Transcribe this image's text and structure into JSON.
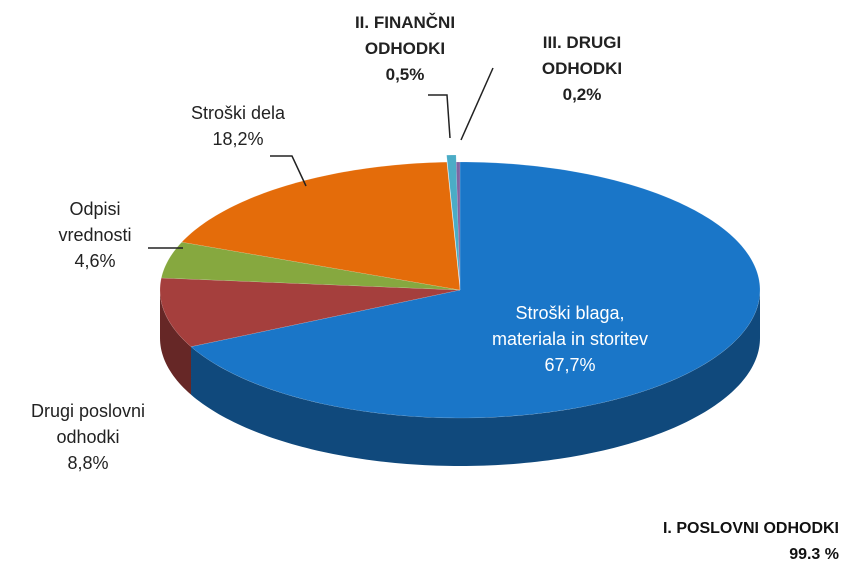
{
  "chart_data": {
    "type": "pie3d",
    "categories": [
      "Stroški blaga, materiala in storitev",
      "Drugi poslovni odhodki",
      "Odpisi vrednosti",
      "Stroški dela",
      "II. FINANČNI ODHODKI",
      "III. DRUGI ODHODKI"
    ],
    "values": [
      67.7,
      8.8,
      4.6,
      18.2,
      0.5,
      0.2
    ],
    "value_labels": [
      "67,7%",
      "8,8%",
      "4,6%",
      "18,2%",
      "0,5%",
      "0,2%"
    ],
    "colors": [
      "#1a76c8",
      "#a53f3d",
      "#86a83f",
      "#e46c0a",
      "#4bacc6",
      "#8064a2"
    ],
    "annotation": {
      "text": "I. POSLOVNI ODHODKI",
      "label": "99.3 %"
    }
  }
}
